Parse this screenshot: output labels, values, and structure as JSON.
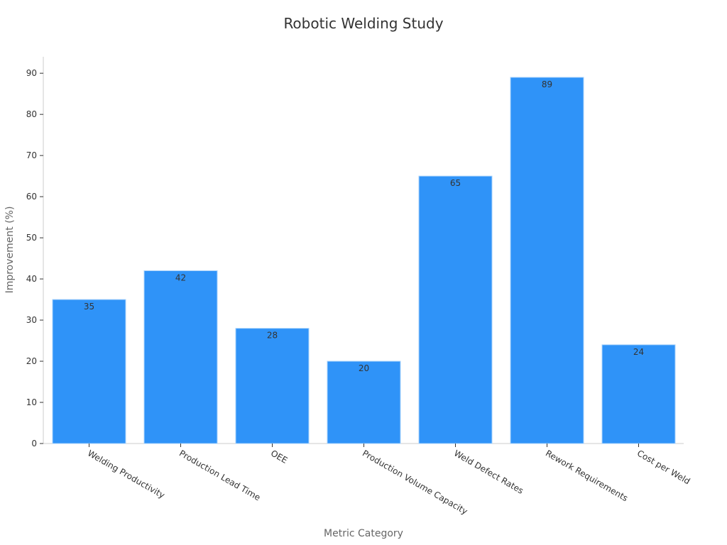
{
  "chart_data": {
    "type": "bar",
    "title": "Robotic Welding Study",
    "xlabel": "Metric Category",
    "ylabel": "Improvement (%)",
    "categories": [
      "Welding Productivity",
      "Production Lead Time",
      "OEE",
      "Production Volume Capacity",
      "Weld Defect Rates",
      "Rework Requirements",
      "Cost per Weld"
    ],
    "values": [
      35,
      42,
      28,
      20,
      65,
      89,
      24
    ],
    "ylim": [
      0,
      94
    ],
    "yticks": [
      0,
      10,
      20,
      30,
      40,
      50,
      60,
      70,
      80,
      90
    ],
    "bar_color": "#2f93f8",
    "bar_edge_color": "#a9d3fb",
    "grid": false,
    "legend": "none",
    "data_labels": true
  }
}
